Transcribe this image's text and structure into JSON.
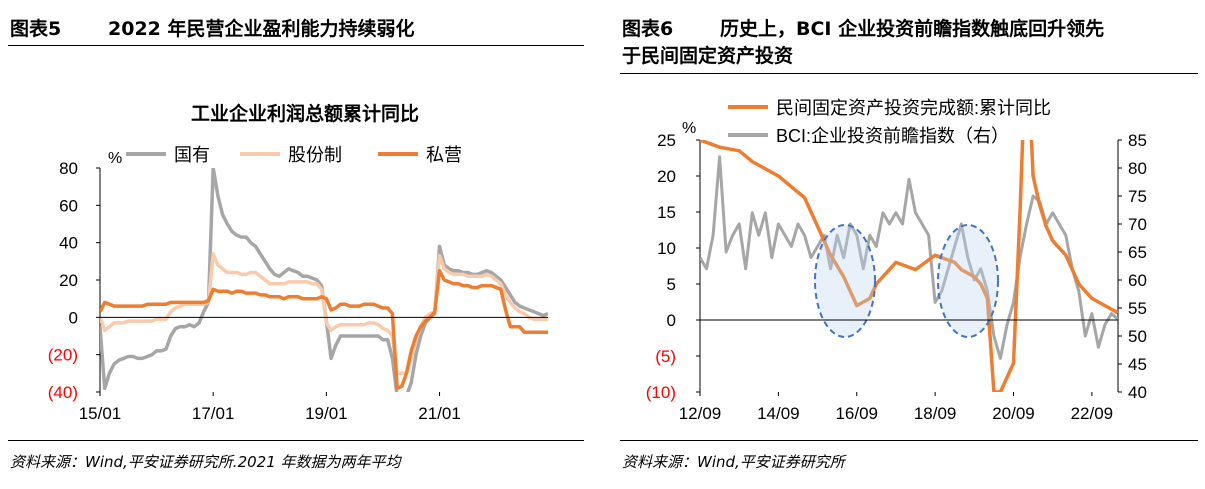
{
  "left": {
    "fig_label": "图表5",
    "fig_title": "2022 年民营企业盈利能力持续弱化",
    "source": "资料来源：Wind,平安证券研究所.2021 年数据为两年平均"
  },
  "right": {
    "fig_label": "图表6",
    "fig_title_line1": "历史上，BCI 企业投资前瞻指数触底回升领先",
    "fig_title_line2": "于民间固定资产投资",
    "source": "资料来源：Wind,平安证券研究所"
  },
  "chart_data": [
    {
      "type": "line",
      "title": "工业企业利润总额累计同比",
      "ylabel": "%",
      "ylim": [
        -40,
        80
      ],
      "yticks": [
        "80",
        "60",
        "40",
        "20",
        "0",
        "(20)",
        "(40)"
      ],
      "ytick_values": [
        80,
        60,
        40,
        20,
        0,
        -20,
        -40
      ],
      "negative_tick_color": "#ff0000",
      "xticks": [
        "15/01",
        "17/01",
        "19/01",
        "21/01"
      ],
      "xtick_positions": [
        0,
        24,
        48,
        72
      ],
      "xlim": [
        0,
        95
      ],
      "grid": false,
      "legend_placement": "top",
      "series": [
        {
          "name": "国有",
          "color": "#a6a6a6",
          "values": [
            -5,
            -38,
            -30,
            -25,
            -23,
            -22,
            -21,
            -21,
            -22,
            -22,
            -21,
            -20,
            -18,
            -18,
            -17,
            -10,
            -6,
            -5,
            -5,
            -4,
            -5,
            -3,
            3,
            8,
            80,
            65,
            55,
            50,
            46,
            44,
            43,
            43,
            40,
            38,
            34,
            30,
            26,
            23,
            22,
            24,
            26,
            25,
            24,
            22,
            22,
            21,
            20,
            17,
            -2,
            -22,
            -15,
            -10,
            -10,
            -10,
            -10,
            -10,
            -10,
            -10,
            -10,
            -10,
            -12,
            -12,
            -22,
            -42,
            -42,
            -42,
            -35,
            -20,
            -10,
            -3,
            0,
            2,
            38,
            28,
            26,
            25,
            25,
            24,
            24,
            23,
            23,
            24,
            25,
            24,
            22,
            20,
            16,
            12,
            8,
            6,
            5,
            4,
            3,
            2,
            1,
            2
          ]
        },
        {
          "name": "股份制",
          "color": "#f8cbad",
          "values": [
            0,
            -7,
            -5,
            -3,
            -3,
            -3,
            -2,
            -2,
            -2,
            -2,
            -2,
            -2,
            -1,
            -1,
            -1,
            3,
            5,
            6,
            7,
            7,
            7,
            7,
            7,
            8,
            34,
            28,
            26,
            24,
            24,
            24,
            23,
            23,
            24,
            24,
            22,
            20,
            18,
            18,
            18,
            18,
            19,
            19,
            19,
            19,
            19,
            18,
            18,
            15,
            -3,
            -7,
            -5,
            -4,
            -4,
            -4,
            -4,
            -4,
            -4,
            -3,
            -3,
            -4,
            -6,
            -7,
            -10,
            -30,
            -30,
            -30,
            -22,
            -12,
            -5,
            0,
            2,
            3,
            33,
            26,
            24,
            23,
            23,
            23,
            22,
            22,
            22,
            22,
            23,
            22,
            20,
            18,
            12,
            8,
            5,
            3,
            2,
            0,
            -1,
            -1,
            -1,
            -1
          ]
        },
        {
          "name": "私营",
          "color": "#ed7d31",
          "values": [
            3,
            8,
            7,
            6,
            6,
            6,
            6,
            6,
            6,
            6,
            7,
            7,
            7,
            7,
            7,
            8,
            8,
            8,
            8,
            8,
            8,
            8,
            8,
            9,
            15,
            14,
            14,
            14,
            13,
            14,
            14,
            13,
            13,
            13,
            12,
            12,
            11,
            11,
            11,
            10,
            11,
            11,
            11,
            10,
            10,
            10,
            10,
            11,
            10,
            4,
            5,
            7,
            7,
            6,
            6,
            6,
            7,
            7,
            7,
            6,
            5,
            5,
            2,
            -38,
            -37,
            -30,
            -18,
            -10,
            -5,
            -2,
            0,
            3,
            25,
            20,
            19,
            18,
            18,
            17,
            17,
            16,
            16,
            17,
            17,
            17,
            16,
            15,
            4,
            -5,
            -5,
            -5,
            -8,
            -8,
            -8,
            -8,
            -8,
            -8
          ]
        }
      ]
    },
    {
      "type": "line",
      "ylabel": "%",
      "ylim": [
        -10,
        25
      ],
      "y2lim": [
        40,
        85
      ],
      "yticks": [
        "25",
        "20",
        "15",
        "10",
        "5",
        "0",
        "(5)",
        "(10)"
      ],
      "ytick_values": [
        25,
        20,
        15,
        10,
        5,
        0,
        -5,
        -10
      ],
      "y2ticks": [
        "85",
        "80",
        "75",
        "70",
        "65",
        "60",
        "55",
        "50",
        "45",
        "40"
      ],
      "y2tick_values": [
        85,
        80,
        75,
        70,
        65,
        60,
        55,
        50,
        45,
        40
      ],
      "negative_tick_color": "#ff0000",
      "xticks": [
        "12/09",
        "14/09",
        "16/09",
        "18/09",
        "20/09",
        "22/09"
      ],
      "xtick_positions": [
        0,
        24,
        48,
        72,
        96,
        120
      ],
      "xlim": [
        0,
        128
      ],
      "grid": false,
      "legend_placement": "top-left",
      "series": [
        {
          "name": "民间固定资产投资完成额:累计同比",
          "axis": "left",
          "color": "#ed7d31",
          "x": [
            0,
            6,
            12,
            16,
            24,
            32,
            36,
            40,
            44,
            48,
            52,
            54,
            60,
            66,
            72,
            78,
            80,
            84,
            86,
            88,
            90,
            92,
            96,
            98,
            100,
            102,
            104,
            106,
            108,
            112,
            116,
            120,
            124,
            128
          ],
          "y": [
            25,
            24,
            23.5,
            22,
            20,
            17,
            13,
            9,
            6,
            2,
            3,
            5,
            8,
            7,
            9,
            8,
            7,
            6,
            5,
            3,
            -10,
            -10,
            -6,
            15,
            40,
            20,
            16,
            13,
            11,
            9,
            5,
            3,
            2,
            1
          ]
        },
        {
          "name": "BCI:企业投资前瞻指数（右）",
          "axis": "right",
          "color": "#a6a6a6",
          "x": [
            0,
            2,
            4,
            6,
            8,
            10,
            12,
            14,
            16,
            18,
            20,
            22,
            24,
            26,
            28,
            30,
            32,
            34,
            36,
            38,
            40,
            42,
            44,
            46,
            48,
            50,
            52,
            54,
            56,
            58,
            60,
            62,
            64,
            66,
            68,
            70,
            72,
            74,
            76,
            78,
            80,
            82,
            84,
            86,
            88,
            90,
            92,
            94,
            96,
            98,
            100,
            102,
            104,
            106,
            108,
            110,
            112,
            114,
            116,
            118,
            120,
            122,
            124,
            126,
            128
          ],
          "y": [
            64,
            62,
            68,
            82,
            65,
            68,
            70,
            62,
            72,
            68,
            72,
            64,
            70,
            68,
            66,
            70,
            68,
            64,
            66,
            68,
            62,
            68,
            64,
            70,
            68,
            62,
            68,
            66,
            72,
            70,
            72,
            70,
            78,
            72,
            70,
            68,
            56,
            58,
            62,
            66,
            70,
            64,
            60,
            62,
            58,
            50,
            46,
            52,
            56,
            64,
            70,
            75,
            74,
            70,
            72,
            70,
            68,
            62,
            58,
            50,
            54,
            48,
            52,
            54,
            53
          ]
        }
      ],
      "annotations": [
        "dashed-ellipse",
        "dashed-ellipse"
      ]
    }
  ]
}
